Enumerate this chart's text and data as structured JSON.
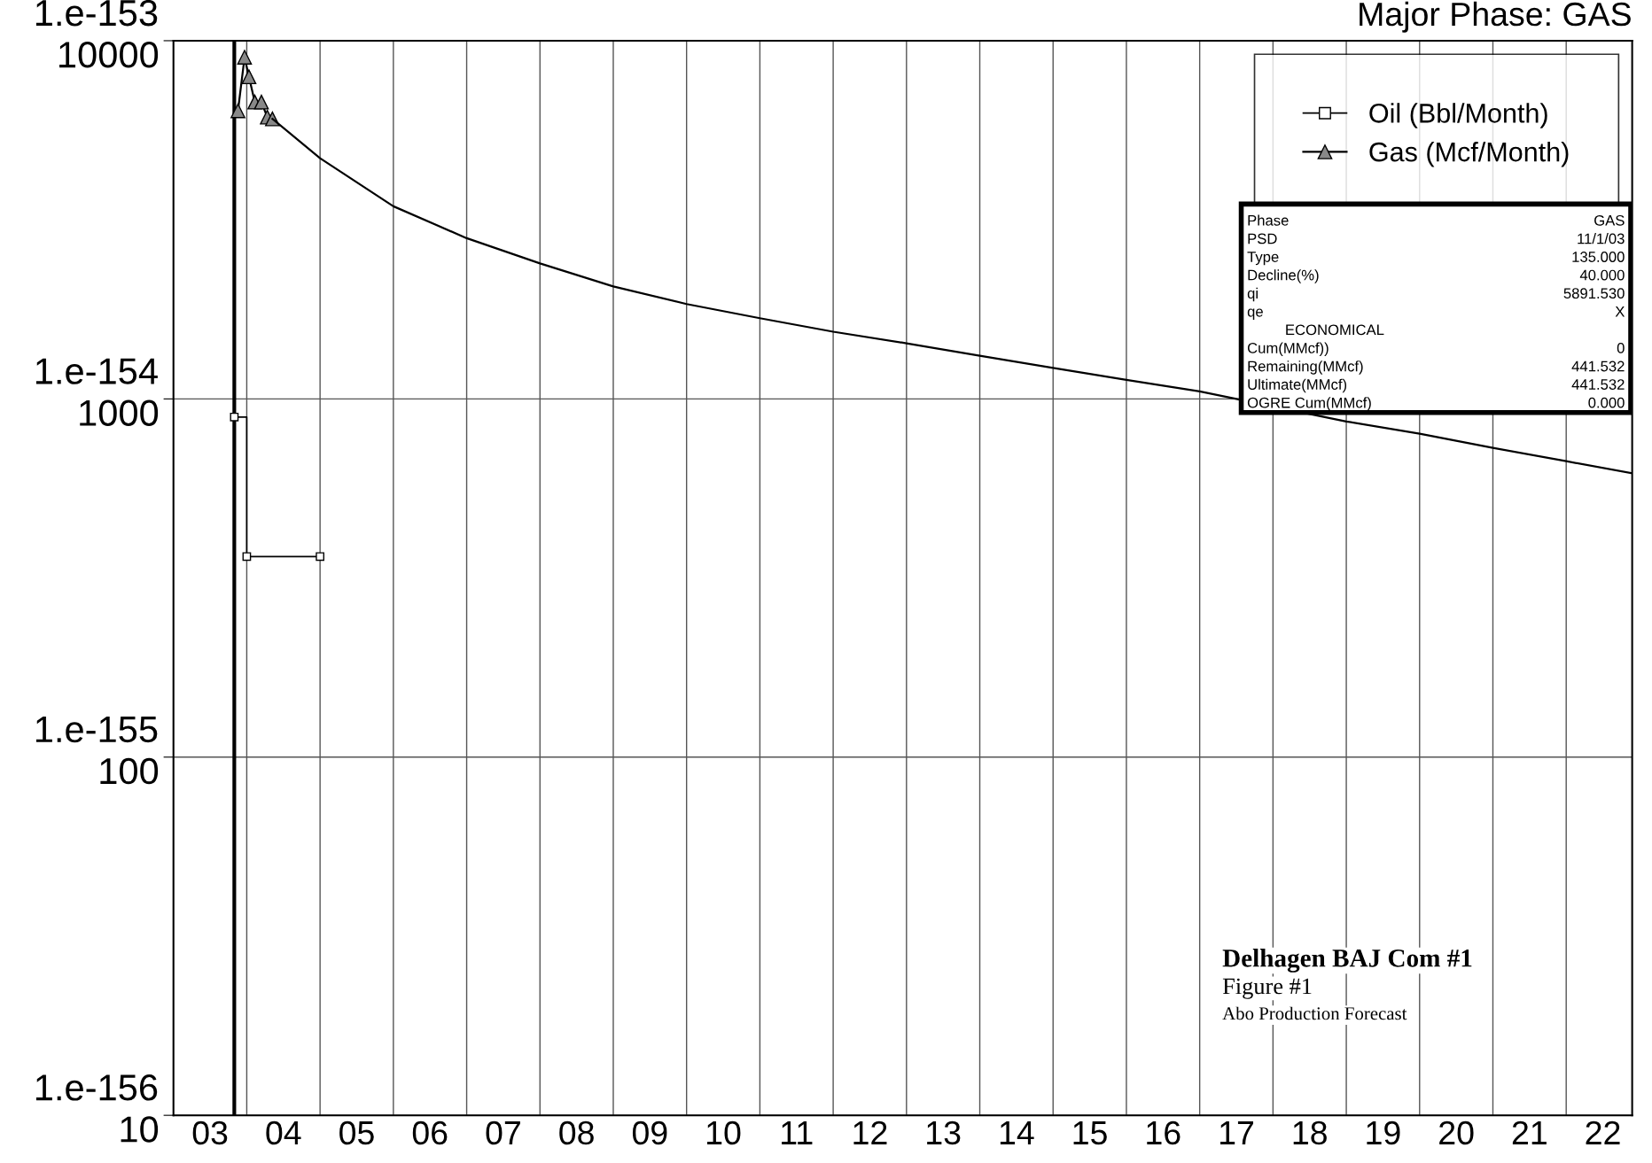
{
  "chart_data": {
    "type": "line",
    "title": "Major Phase: GAS",
    "xlim": [
      2.5,
      22.4
    ],
    "xticks": [
      {
        "value": 3,
        "label": "03"
      },
      {
        "value": 3.5,
        "label": null
      },
      {
        "value": 4,
        "label": "04"
      },
      {
        "value": 4.5,
        "label": null
      },
      {
        "value": 5,
        "label": "05"
      },
      {
        "value": 5.5,
        "label": null
      },
      {
        "value": 6,
        "label": "06"
      },
      {
        "value": 6.5,
        "label": null
      },
      {
        "value": 7,
        "label": "07"
      },
      {
        "value": 7.5,
        "label": null
      },
      {
        "value": 8,
        "label": "08"
      },
      {
        "value": 8.5,
        "label": null
      },
      {
        "value": 9,
        "label": "09"
      },
      {
        "value": 9.5,
        "label": null
      },
      {
        "value": 10,
        "label": "10"
      },
      {
        "value": 10.5,
        "label": null
      },
      {
        "value": 11,
        "label": "11"
      },
      {
        "value": 11.5,
        "label": null
      },
      {
        "value": 12,
        "label": "12"
      },
      {
        "value": 12.5,
        "label": null
      },
      {
        "value": 13,
        "label": "13"
      },
      {
        "value": 13.5,
        "label": null
      },
      {
        "value": 14,
        "label": "14"
      },
      {
        "value": 14.5,
        "label": null
      },
      {
        "value": 15,
        "label": "15"
      },
      {
        "value": 15.5,
        "label": null
      },
      {
        "value": 16,
        "label": "16"
      },
      {
        "value": 16.5,
        "label": null
      },
      {
        "value": 17,
        "label": "17"
      },
      {
        "value": 17.5,
        "label": null
      },
      {
        "value": 18,
        "label": "18"
      },
      {
        "value": 18.5,
        "label": null
      },
      {
        "value": 19,
        "label": "19"
      },
      {
        "value": 19.5,
        "label": null
      },
      {
        "value": 20,
        "label": "20"
      },
      {
        "value": 20.5,
        "label": null
      },
      {
        "value": 21,
        "label": "21"
      },
      {
        "value": 21.5,
        "label": null
      },
      {
        "value": 22,
        "label": "22"
      }
    ],
    "ylim": [
      10,
      10000
    ],
    "yticks": [
      10,
      100,
      1000,
      10000
    ],
    "log": "y",
    "grid": true,
    "legend": "top right",
    "series": [
      {
        "name": "Oil (Bbl/Month)",
        "type": "step",
        "color": "#000000",
        "marker": "square",
        "x": [
          3.33,
          3.5,
          4.5
        ],
        "values": [
          890,
          363,
          363
        ]
      },
      {
        "name": "Gas (Mcf/Month)",
        "color": "#000000",
        "marker": "triangle",
        "x": [
          3.38,
          3.47,
          3.53,
          3.61,
          3.7,
          3.78,
          3.85
        ],
        "values": [
          6370,
          8990,
          7930,
          6740,
          6740,
          6120,
          6050
        ]
      },
      {
        "color": "#000000",
        "marker": "none",
        "x": [
          3.85,
          4.5,
          5.5,
          6.5,
          7.5,
          8.5,
          9.5,
          10.5,
          11.5,
          12.5,
          13.5,
          14.5,
          15.5,
          16.5,
          17.5,
          18.5,
          19.5,
          20.5,
          21.5,
          22.4
        ],
        "values": [
          6050,
          4700,
          3450,
          2810,
          2390,
          2060,
          1840,
          1680,
          1540,
          1430,
          1320,
          1220,
          1130,
          1050,
          null,
          865,
          800,
          730,
          670,
          620
        ]
      }
    ],
    "ref_lines": [
      {
        "axis": "x",
        "value": 3.33,
        "color": "#000000"
      }
    ],
    "annotations": [
      "Phase",
      "GAS",
      "PSD",
      "11/1/03",
      "Type",
      "135.000",
      "Decline(%)",
      "40.000",
      "qi",
      "5891.530",
      "qe",
      "X",
      "ECONOMICAL",
      "Cum(MMcf))",
      "0",
      "Remaining(MMcf)",
      "441.532",
      "Ultimate(MMcf)",
      "441.532",
      "OGRE Cum(MMcf)",
      "0.000",
      "Delhagen BAJ Com #1",
      "Figure #1",
      "Abo Production Forecast",
      "1.e-153",
      "1.e-154",
      "1.e-155",
      "1.e-156"
    ]
  }
}
